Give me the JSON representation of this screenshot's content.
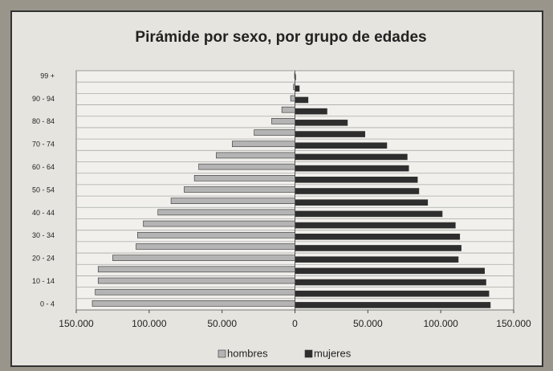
{
  "chart_data": {
    "type": "pyramid",
    "title": "Pirámide por sexo, por grupo de edades",
    "categories": [
      "0 - 4",
      null,
      "10 - 14",
      null,
      "20 - 24",
      null,
      "30 - 34",
      null,
      "40 - 44",
      null,
      "50 - 54",
      null,
      "60 - 64",
      null,
      "70 - 74",
      null,
      "80 - 84",
      null,
      "90 - 94",
      null,
      "99 +"
    ],
    "series": [
      {
        "name": "hombres",
        "color": "#b4b4b4",
        "side": "left",
        "values": [
          139000,
          137000,
          135000,
          135000,
          125000,
          109000,
          108000,
          104000,
          94000,
          85000,
          76000,
          69000,
          66000,
          54000,
          43000,
          28000,
          16000,
          9000,
          3000,
          1000,
          300
        ]
      },
      {
        "name": "mujeres",
        "color": "#2e2e2e",
        "side": "right",
        "values": [
          134000,
          133000,
          131000,
          130000,
          112000,
          114000,
          113000,
          110000,
          101000,
          91000,
          85000,
          84000,
          78000,
          77000,
          63000,
          48000,
          36000,
          22000,
          9000,
          3000,
          500
        ]
      }
    ],
    "xlim": [
      -150000,
      150000
    ],
    "xticks": [
      {
        "value": -150000,
        "label": "150.000"
      },
      {
        "value": -100000,
        "label": "100.000"
      },
      {
        "value": -50000,
        "label": "50.000"
      },
      0,
      {
        "value": 50000,
        "label": "50.000"
      },
      {
        "value": 100000,
        "label": "100.000"
      },
      {
        "value": 150000,
        "label": "150.000"
      }
    ],
    "grid": true,
    "legend": "bottom"
  }
}
